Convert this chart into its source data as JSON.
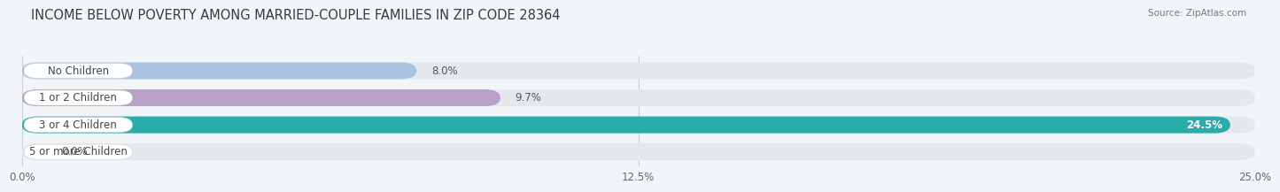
{
  "title": "INCOME BELOW POVERTY AMONG MARRIED-COUPLE FAMILIES IN ZIP CODE 28364",
  "source": "Source: ZipAtlas.com",
  "categories": [
    "No Children",
    "1 or 2 Children",
    "3 or 4 Children",
    "5 or more Children"
  ],
  "values": [
    8.0,
    9.7,
    24.5,
    0.0
  ],
  "bar_colors": [
    "#a8c4e0",
    "#b8a0c8",
    "#2aacaa",
    "#b0b8e0"
  ],
  "value_label_colors": [
    "#555555",
    "#555555",
    "#ffffff",
    "#555555"
  ],
  "xlim": [
    0,
    25.0
  ],
  "xticks": [
    0.0,
    12.5,
    25.0
  ],
  "xticklabels": [
    "0.0%",
    "12.5%",
    "25.0%"
  ],
  "title_fontsize": 10.5,
  "bar_height": 0.62,
  "background_color": "#f2f5f8",
  "bar_background_color": "#e4e8ed",
  "value_label_fontsize": 8.5,
  "cat_label_fontsize": 8.5
}
